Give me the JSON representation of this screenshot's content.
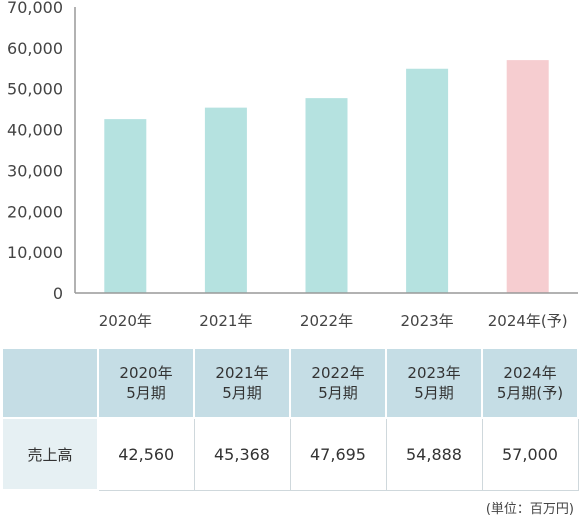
{
  "chart_data": {
    "type": "bar",
    "categories": [
      "2020年",
      "2021年",
      "2022年",
      "2023年",
      "2024年(予)"
    ],
    "values": [
      42560,
      45368,
      47695,
      54888,
      57000
    ],
    "forecast_index": 4,
    "ylim": [
      0,
      70000
    ],
    "yticks": [
      "0",
      "10,000",
      "20,000",
      "30,000",
      "40,000",
      "50,000",
      "60,000",
      "70,000"
    ],
    "grid": false,
    "colors": {
      "actual": "#b5e2e0",
      "forecast": "#f6cdd0",
      "axis": "#999999"
    }
  },
  "table": {
    "headers": [
      {
        "line1": "",
        "line2": ""
      },
      {
        "line1": "2020年",
        "line2": "5月期"
      },
      {
        "line1": "2021年",
        "line2": "5月期"
      },
      {
        "line1": "2022年",
        "line2": "5月期"
      },
      {
        "line1": "2023年",
        "line2": "5月期"
      },
      {
        "line1": "2024年",
        "line2": "5月期(予)"
      }
    ],
    "row_label": "売上高",
    "cells": [
      "42,560",
      "45,368",
      "47,695",
      "54,888",
      "57,000"
    ]
  },
  "unit_note": "(単位：百万円)"
}
